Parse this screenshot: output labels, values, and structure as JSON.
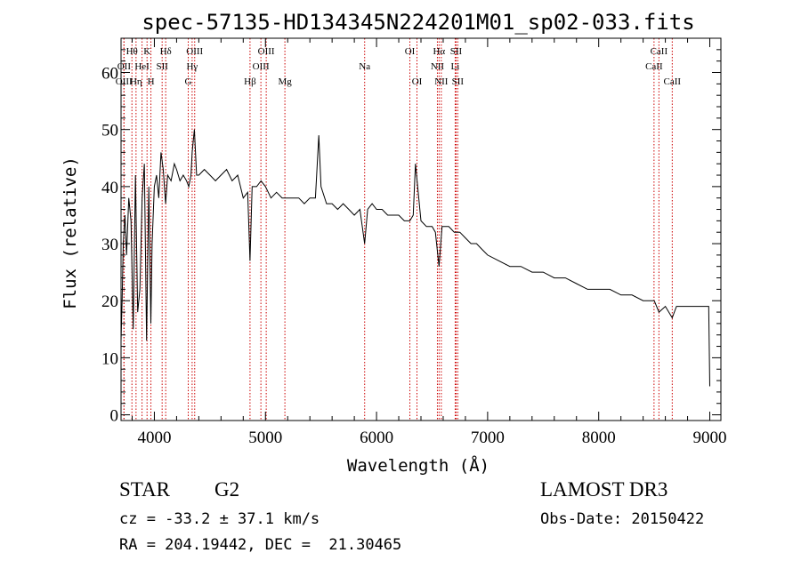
{
  "chart_data": {
    "type": "line",
    "title": "spec-57135-HD134345N224201M01_sp02-033.fits",
    "xlabel": "Wavelength (Å)",
    "ylabel": "Flux (relative)",
    "xlim": [
      3700,
      9100
    ],
    "ylim": [
      -1,
      66
    ],
    "x_ticks": [
      4000,
      5000,
      6000,
      7000,
      8000,
      9000
    ],
    "y_ticks": [
      0,
      10,
      20,
      30,
      40,
      50,
      60
    ],
    "series": [
      {
        "name": "spectrum",
        "x": [
          3700,
          3710,
          3720,
          3735,
          3750,
          3770,
          3790,
          3810,
          3830,
          3850,
          3870,
          3890,
          3910,
          3930,
          3950,
          3968,
          3980,
          4000,
          4020,
          4040,
          4060,
          4080,
          4101,
          4120,
          4150,
          4180,
          4200,
          4230,
          4260,
          4290,
          4310,
          4330,
          4340,
          4360,
          4380,
          4400,
          4450,
          4500,
          4550,
          4600,
          4650,
          4700,
          4750,
          4800,
          4840,
          4861,
          4880,
          4920,
          4960,
          5000,
          5050,
          5100,
          5150,
          5200,
          5250,
          5300,
          5350,
          5400,
          5450,
          5480,
          5500,
          5550,
          5600,
          5650,
          5700,
          5750,
          5800,
          5850,
          5893,
          5920,
          5960,
          6000,
          6050,
          6100,
          6150,
          6200,
          6250,
          6300,
          6330,
          6350,
          6400,
          6450,
          6500,
          6530,
          6563,
          6590,
          6620,
          6650,
          6700,
          6750,
          6800,
          6850,
          6900,
          6950,
          7000,
          7100,
          7200,
          7300,
          7400,
          7500,
          7600,
          7700,
          7800,
          7900,
          8000,
          8100,
          8200,
          8300,
          8400,
          8500,
          8542,
          8600,
          8662,
          8700,
          8800,
          8900,
          8990,
          9000
        ],
        "values": [
          13,
          20,
          30,
          35,
          28,
          38,
          34,
          15,
          42,
          18,
          22,
          38,
          44,
          13,
          40,
          16,
          30,
          40,
          42,
          38,
          46,
          43,
          37,
          42,
          41,
          44,
          43,
          41,
          42,
          41,
          40,
          42,
          46,
          50,
          42,
          42,
          43,
          42,
          41,
          42,
          43,
          41,
          42,
          38,
          39,
          27,
          40,
          40,
          41,
          40,
          38,
          39,
          38,
          38,
          38,
          38,
          37,
          38,
          38,
          49,
          40,
          37,
          37,
          36,
          37,
          36,
          35,
          36,
          30,
          36,
          37,
          36,
          36,
          35,
          35,
          35,
          34,
          34,
          35,
          44,
          34,
          33,
          33,
          32,
          26,
          33,
          33,
          33,
          32,
          32,
          31,
          30,
          30,
          29,
          28,
          27,
          26,
          26,
          25,
          25,
          24,
          24,
          23,
          22,
          22,
          22,
          21,
          21,
          20,
          20,
          18,
          19,
          17,
          19,
          19,
          19,
          19,
          5
        ]
      }
    ],
    "line_markers": [
      {
        "label": "Hθ",
        "wavelength": 3798,
        "row": 1
      },
      {
        "label": "OII",
        "wavelength": 3727,
        "row": 2
      },
      {
        "label": "OIII",
        "wavelength": 3726,
        "row": 3
      },
      {
        "label": "K",
        "wavelength": 3934,
        "row": 1
      },
      {
        "label": "HeI",
        "wavelength": 3889,
        "row": 2
      },
      {
        "label": "Hη",
        "wavelength": 3835,
        "row": 3
      },
      {
        "label": "SII",
        "wavelength": 4070,
        "row": 2
      },
      {
        "label": "H",
        "wavelength": 3969,
        "row": 3
      },
      {
        "label": "Hδ",
        "wavelength": 4102,
        "row": 1
      },
      {
        "label": "OIII",
        "wavelength": 4363,
        "row": 1
      },
      {
        "label": "Hγ",
        "wavelength": 4340,
        "row": 2
      },
      {
        "label": "G",
        "wavelength": 4305,
        "row": 3
      },
      {
        "label": "Hβ",
        "wavelength": 4861,
        "row": 3
      },
      {
        "label": "OIII",
        "wavelength": 5007,
        "row": 1
      },
      {
        "label": "OIII",
        "wavelength": 4959,
        "row": 2
      },
      {
        "label": "Mg",
        "wavelength": 5175,
        "row": 3
      },
      {
        "label": "Na",
        "wavelength": 5893,
        "row": 2
      },
      {
        "label": "OI",
        "wavelength": 6300,
        "row": 1
      },
      {
        "label": "OI",
        "wavelength": 6364,
        "row": 3
      },
      {
        "label": "Hα",
        "wavelength": 6563,
        "row": 1
      },
      {
        "label": "NII",
        "wavelength": 6548,
        "row": 2
      },
      {
        "label": "NII",
        "wavelength": 6583,
        "row": 3
      },
      {
        "label": "SII",
        "wavelength": 6716,
        "row": 1
      },
      {
        "label": "Li",
        "wavelength": 6708,
        "row": 2
      },
      {
        "label": "SII",
        "wavelength": 6731,
        "row": 3
      },
      {
        "label": "CaII",
        "wavelength": 8542,
        "row": 1
      },
      {
        "label": "CaII",
        "wavelength": 8498,
        "row": 2
      },
      {
        "label": "CaII",
        "wavelength": 8662,
        "row": 3
      }
    ]
  },
  "info": {
    "object_class": "STAR",
    "subclass": "G2",
    "survey": "LAMOST DR3",
    "redshift": "cz = -33.2 ± 37.1 km/s",
    "obs_date": "Obs-Date: 20150422",
    "coordinates": "RA = 204.19442, DEC =  21.30465"
  },
  "colors": {
    "spectrum": "#000000",
    "marker_line": "#cc0000",
    "axis": "#000000",
    "background": "#ffffff"
  }
}
